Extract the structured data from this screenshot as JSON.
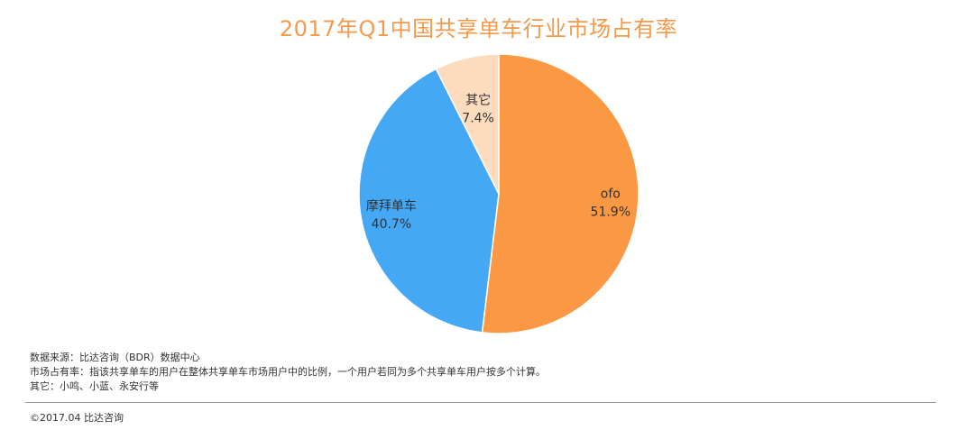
{
  "chart_data": {
    "type": "pie",
    "title": "2017年Q1中国共享单车行业市场占有率",
    "slices": [
      {
        "label": "ofo",
        "value": 51.9,
        "value_label": "51.9%",
        "color": "#FB9843"
      },
      {
        "label": "摩拜单车",
        "value": 40.7,
        "value_label": "40.7%",
        "color": "#45A8F5"
      },
      {
        "label": "其它",
        "value": 7.4,
        "value_label": "7.4%",
        "color": "#FCDBBF"
      }
    ],
    "start": "12 o'clock",
    "direction": "clockwise"
  },
  "notes": {
    "source": "数据来源：比达咨询（BDR）数据中心",
    "definition": "市场占有率：指该共享单车的用户在整体共享单车市场用户中的比例，一个用户若同为多个共享单车用户按多个计算。",
    "others": "其它：小鸣、小蓝、永安行等"
  },
  "footer": {
    "copyright": "©2017.04 比达咨询"
  }
}
